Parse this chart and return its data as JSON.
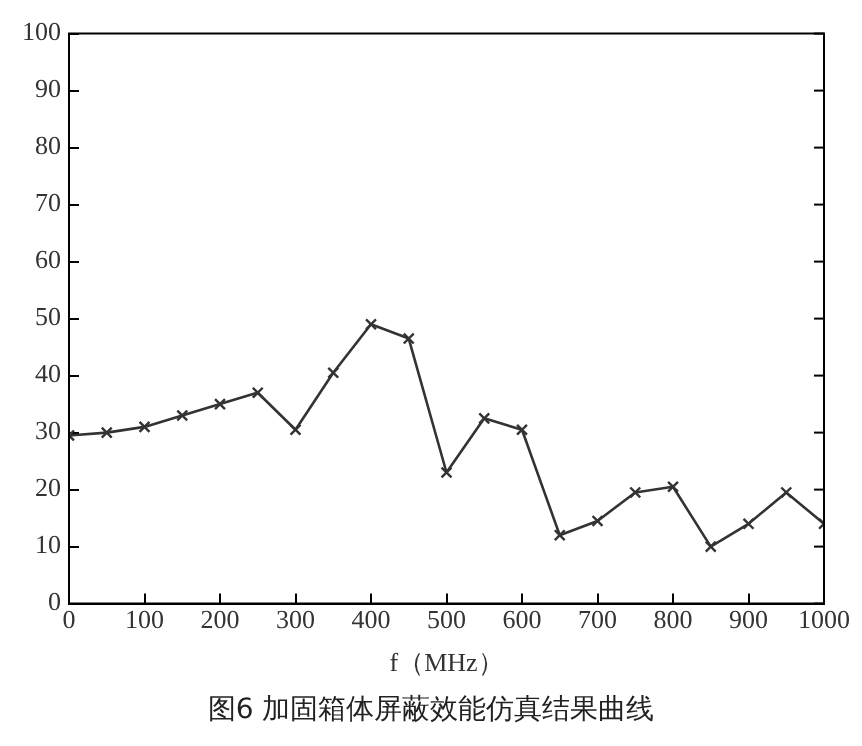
{
  "chart_data": {
    "type": "line",
    "xlabel": "f（MHz）",
    "annotations": [
      "图6   加固箱体屏蔽效能仿真结果曲线"
    ],
    "x": [
      0,
      50,
      100,
      150,
      200,
      250,
      300,
      350,
      400,
      450,
      500,
      550,
      600,
      650,
      700,
      750,
      800,
      850,
      900,
      950,
      1000
    ],
    "series": [
      {
        "color": "#333333",
        "values": [
          29.5,
          30,
          31,
          33,
          35,
          37,
          30.5,
          40.5,
          49,
          46.5,
          23,
          32.5,
          30.5,
          12,
          14.5,
          19.5,
          20.5,
          10,
          14,
          19.5,
          14
        ]
      }
    ],
    "xlim": [
      0,
      1000
    ],
    "xticks": [
      0,
      100,
      200,
      300,
      400,
      500,
      600,
      700,
      800,
      900,
      1000
    ],
    "ylim": [
      0,
      100
    ],
    "yticks": [
      0,
      10,
      20,
      30,
      40,
      50,
      60,
      70,
      80,
      90,
      100
    ],
    "grid": false,
    "legend": false,
    "marker": "cross",
    "line_style": "solid"
  }
}
